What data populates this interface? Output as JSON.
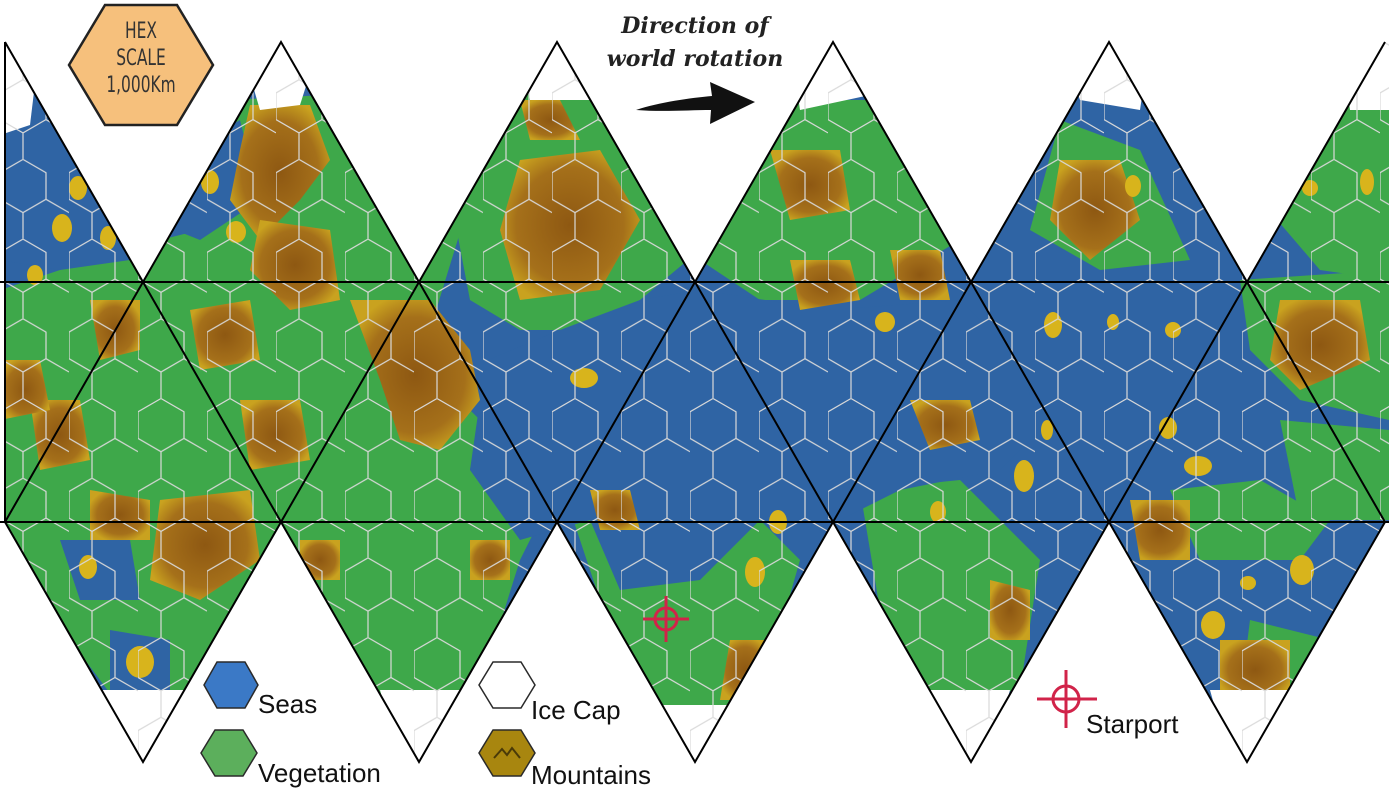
{
  "scale_badge": {
    "lines": [
      "HEX",
      "SCALE",
      "1,000Km"
    ]
  },
  "rotation_label": {
    "lines": [
      "Direction of",
      "world rotation"
    ]
  },
  "legend": {
    "seas": "Seas",
    "vegetation": "Vegetation",
    "ice_cap": "Ice Cap",
    "mountains": "Mountains",
    "starport": "Starport"
  },
  "colors": {
    "sea": "#2f64a4",
    "vegetation": "#3ea84a",
    "ice": "#ffffff",
    "mountain": "#9a6214",
    "mountain_edge": "#c9a21f",
    "desert": "#d8b41c",
    "starport": "#d12349",
    "badge": "#f6c07c",
    "hexgrid": "#d9d9d9",
    "outline": "#000000"
  },
  "icons": [
    "hex-scale-badge",
    "rotation-arrow-icon",
    "sea-hex-icon",
    "vegetation-hex-icon",
    "ice-hex-icon",
    "mountain-hex-icon",
    "starport-crosshair-icon"
  ]
}
